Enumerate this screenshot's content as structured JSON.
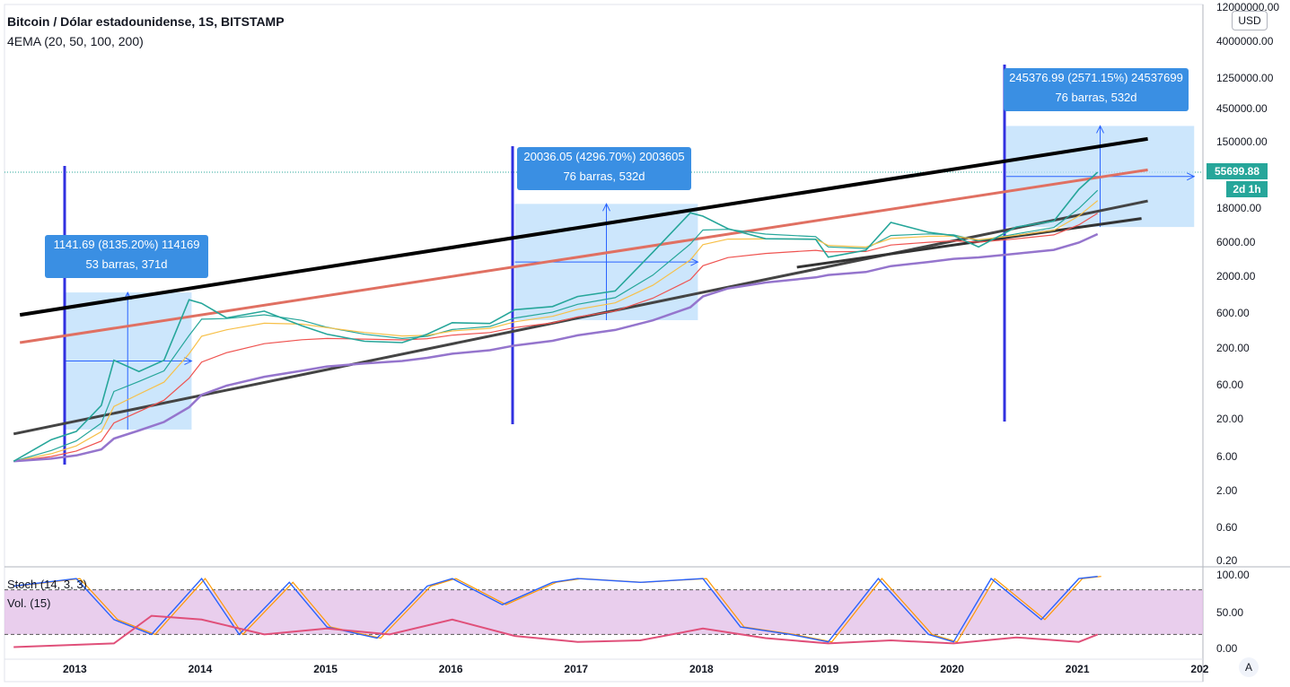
{
  "header": {
    "title": "Bitcoin / Dólar estadounidense, 1S, BITSTAMP",
    "indicator": "4EMA (20, 50, 100, 200)"
  },
  "currency_button": "USD",
  "price_tag": {
    "value": "55699.88",
    "timeframe": "2d 1h",
    "color": "#26a69a"
  },
  "auto_button": "A",
  "annotations": [
    {
      "line1": "1141.69 (8135.20%) 114169",
      "line2": "53 barras, 371d"
    },
    {
      "line1": "20036.05 (4296.70%) 2003605",
      "line2": "76 barras, 532d"
    },
    {
      "line1": "245376.99 (2571.15%) 24537699",
      "line2": "76 barras, 532d"
    }
  ],
  "oscillator": {
    "stoch_label": "Stoch (14, 3, 3)",
    "vol_label": "Vol. (15)"
  },
  "chart_data": [
    {
      "type": "line",
      "scale": "log",
      "y_ticks": [
        "12000000.00",
        "4000000.00",
        "1250000.00",
        "450000.00",
        "150000.00",
        "55699.88",
        "18000.00",
        "6000.00",
        "2000.00",
        "600.00",
        "200.00",
        "60.00",
        "20.00",
        "6.00",
        "2.00",
        "0.60",
        "0.20"
      ],
      "x_ticks": [
        "2013",
        "2014",
        "2015",
        "2016",
        "2017",
        "2018",
        "2019",
        "2020",
        "2021",
        "202"
      ],
      "last_price": 55699.88,
      "series": [
        {
          "x": [
            2012.5,
            2012.8,
            2013.0,
            2013.2,
            2013.3,
            2013.5,
            2013.7,
            2013.9,
            2014.0,
            2014.2,
            2014.5,
            2014.8,
            2015.0,
            2015.3,
            2015.6,
            2015.8,
            2016.0,
            2016.3,
            2016.5,
            2016.8,
            2017.0,
            2017.3,
            2017.6,
            2017.9,
            2018.0,
            2018.2,
            2018.5,
            2018.9,
            2019.0,
            2019.3,
            2019.5,
            2019.8,
            2020.0,
            2020.2,
            2020.5,
            2020.8,
            2021.0,
            2021.15
          ],
          "y": [
            5,
            10,
            13,
            30,
            130,
            90,
            130,
            900,
            800,
            500,
            620,
            390,
            300,
            240,
            230,
            300,
            430,
            420,
            650,
            720,
            1000,
            1200,
            4200,
            15000,
            13500,
            9000,
            6500,
            6400,
            3600,
            4500,
            11000,
            8000,
            7200,
            5000,
            9500,
            11500,
            32000,
            55700
          ]
        }
      ],
      "channel_lines": [
        {
          "color": "#000000",
          "x": [
            2012.55,
            2021.55
          ],
          "y": [
            550,
            160000
          ]
        },
        {
          "color": "#e07062",
          "x": [
            2012.55,
            2021.55
          ],
          "y": [
            230,
            60000
          ]
        },
        {
          "color": "#444444",
          "x": [
            2012.5,
            2021.55
          ],
          "y": [
            12,
            22000
          ]
        },
        {
          "color": "#333333",
          "x": [
            2018.75,
            2021.5
          ],
          "y": [
            2600,
            12500
          ]
        }
      ],
      "measure_boxes": [
        {
          "x_start": 2012.9,
          "x_end": 2013.92,
          "y_low": 13.8,
          "y_high": 1141.69
        },
        {
          "x_start": 2016.5,
          "x_end": 2017.96,
          "y_low": 466,
          "y_high": 20036.05
        },
        {
          "x_start": 2020.42,
          "x_end": 2021.92,
          "y_low": 9500,
          "y_high": 245376.99
        }
      ]
    },
    {
      "type": "line",
      "title": "Stoch (14, 3, 3)",
      "y_ticks": [
        "100.00",
        "50.00",
        "0.00"
      ],
      "bands": [
        80,
        20
      ],
      "series": [
        {
          "name": "Stoch",
          "color": "#2962ff",
          "x": [
            2012.5,
            2013.0,
            2013.3,
            2013.6,
            2014.0,
            2014.3,
            2014.7,
            2015.0,
            2015.4,
            2015.8,
            2016.0,
            2016.4,
            2016.8,
            2017.0,
            2017.5,
            2018.0,
            2018.3,
            2018.7,
            2019.0,
            2019.4,
            2019.8,
            2020.0,
            2020.3,
            2020.7,
            2021.0,
            2021.15
          ],
          "y": [
            85,
            95,
            40,
            20,
            95,
            20,
            90,
            30,
            15,
            85,
            95,
            60,
            90,
            95,
            90,
            95,
            30,
            20,
            10,
            95,
            20,
            10,
            95,
            40,
            95,
            98
          ]
        }
      ],
      "volume_series": {
        "color": "#e0507a",
        "x": [
          2012.5,
          2013.3,
          2013.6,
          2014.0,
          2014.5,
          2015.0,
          2015.5,
          2016.0,
          2016.5,
          2017.0,
          2017.5,
          2018.0,
          2018.5,
          2019.0,
          2019.5,
          2020.0,
          2020.5,
          2021.0,
          2021.15
        ],
        "y": [
          3,
          8,
          45,
          40,
          20,
          28,
          20,
          40,
          18,
          10,
          12,
          28,
          15,
          8,
          12,
          8,
          16,
          10,
          20
        ]
      }
    }
  ]
}
